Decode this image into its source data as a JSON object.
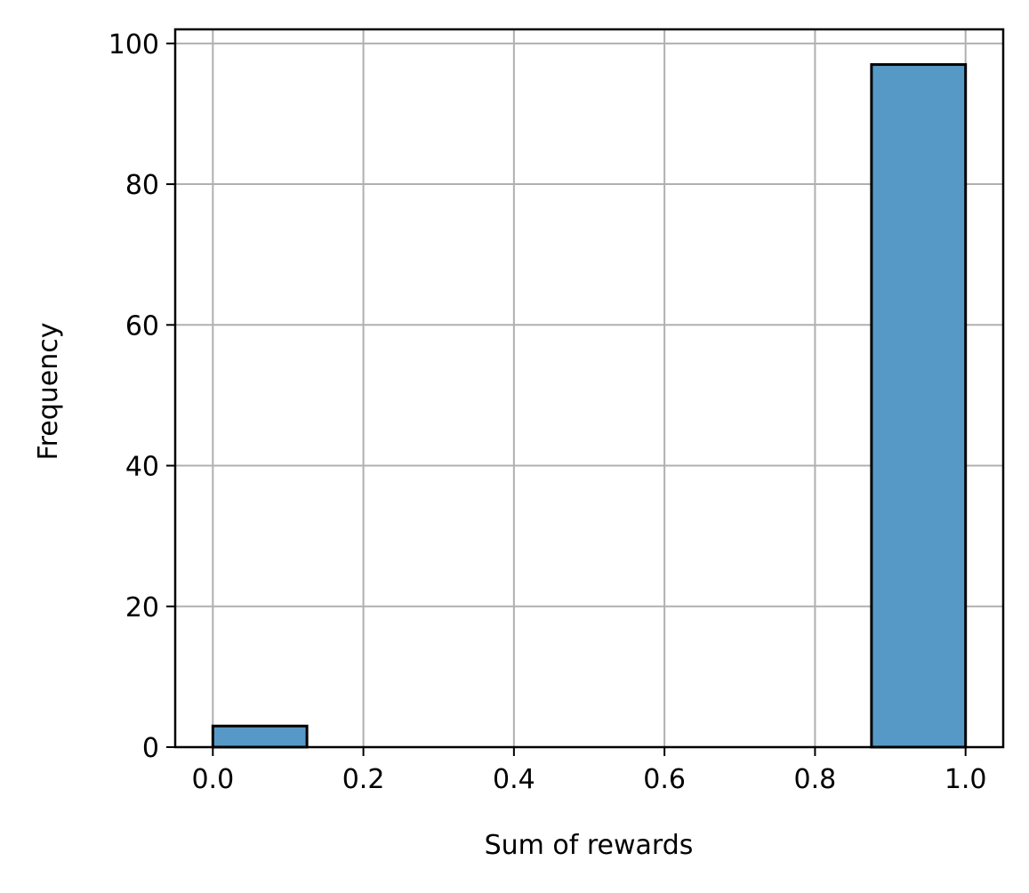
{
  "chart_data": {
    "type": "bar",
    "subtype": "histogram",
    "title": "",
    "xlabel": "Sum of rewards",
    "ylabel": "Frequency",
    "xlim": [
      -0.05,
      1.05
    ],
    "ylim": [
      0,
      102
    ],
    "x_ticks": [
      0.0,
      0.2,
      0.4,
      0.6,
      0.8,
      1.0
    ],
    "x_tick_labels": [
      "0.0",
      "0.2",
      "0.4",
      "0.6",
      "0.8",
      "1.0"
    ],
    "y_ticks": [
      0,
      20,
      40,
      60,
      80,
      100
    ],
    "y_tick_labels": [
      "0",
      "20",
      "40",
      "60",
      "80",
      "100"
    ],
    "bins": [
      {
        "x_start": 0.0,
        "x_end": 0.125,
        "value": 3
      },
      {
        "x_start": 0.125,
        "x_end": 0.25,
        "value": 0
      },
      {
        "x_start": 0.25,
        "x_end": 0.375,
        "value": 0
      },
      {
        "x_start": 0.375,
        "x_end": 0.5,
        "value": 0
      },
      {
        "x_start": 0.5,
        "x_end": 0.625,
        "value": 0
      },
      {
        "x_start": 0.625,
        "x_end": 0.75,
        "value": 0
      },
      {
        "x_start": 0.75,
        "x_end": 0.875,
        "value": 0
      },
      {
        "x_start": 0.875,
        "x_end": 1.0,
        "value": 97
      }
    ],
    "grid": true,
    "colors": {
      "bar_fill": "#5799c6",
      "bar_edge": "#000000",
      "grid": "#b0b0b0",
      "axes": "#000000"
    }
  }
}
